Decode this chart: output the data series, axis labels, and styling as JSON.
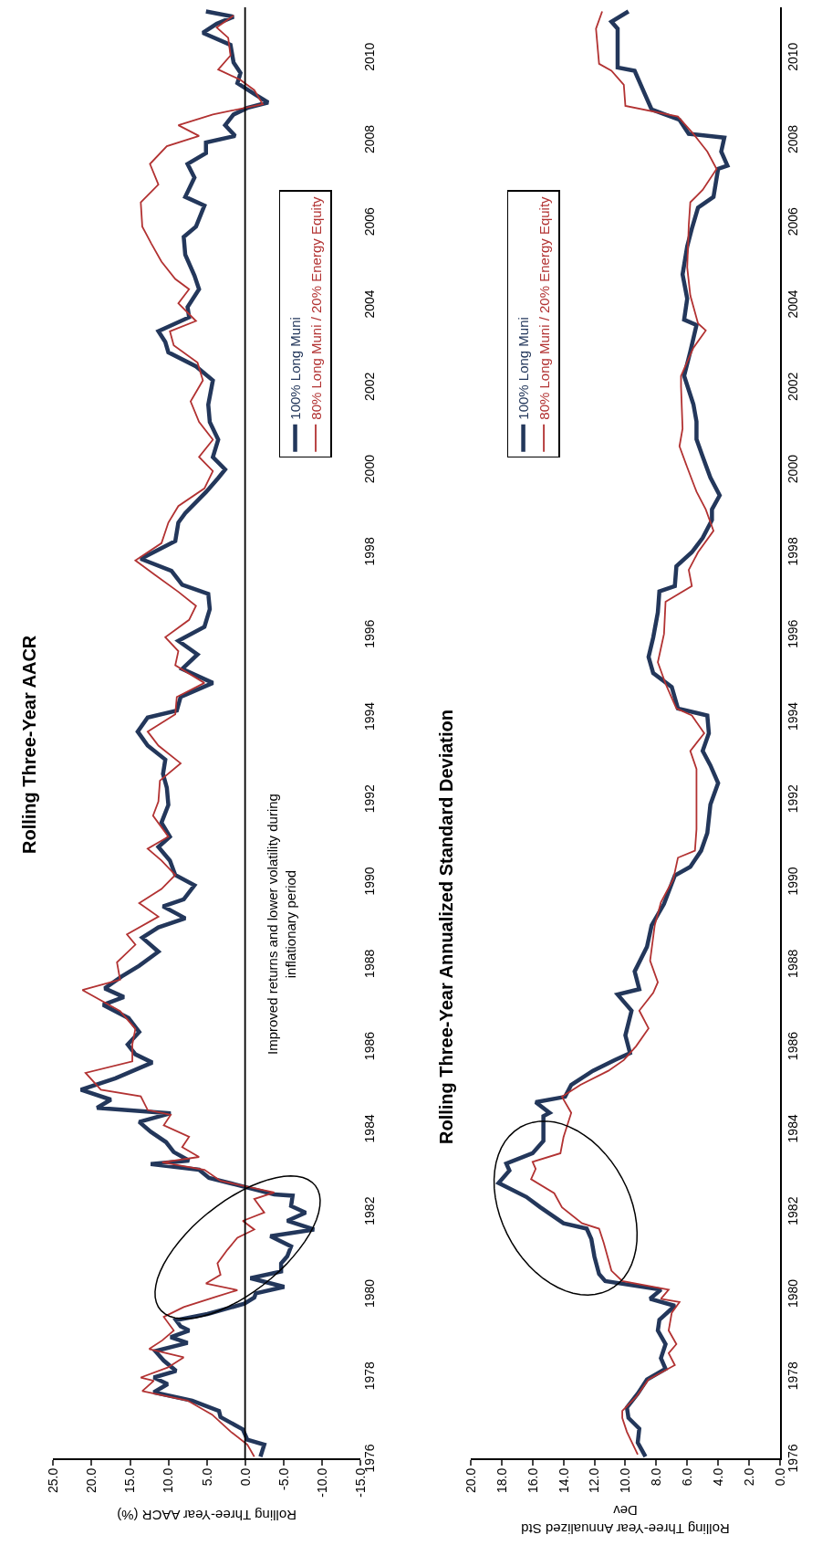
{
  "chart_data": [
    {
      "type": "line",
      "title": "Rolling Three-Year AACR",
      "xlabel": "Rolling Three-Year AACR (%)",
      "annotations": [
        "Improved returns and lower volatility during inflationary period"
      ],
      "ylim": [
        1976,
        2011.2
      ],
      "yticks": [
        1976,
        1978,
        1980,
        1982,
        1984,
        1986,
        1988,
        1990,
        1992,
        1994,
        1996,
        1998,
        2000,
        2002,
        2004,
        2006,
        2008,
        2010
      ],
      "xlim": [
        25,
        -15
      ],
      "xticks": [
        {
          "value": -15,
          "label": "-15.0"
        },
        {
          "value": -10,
          "label": "-10.0"
        },
        {
          "value": -5,
          "label": "-5.0"
        },
        {
          "value": 0,
          "label": "0.0"
        },
        {
          "value": 5,
          "label": "5.0"
        },
        {
          "value": 10,
          "label": "10.0"
        },
        {
          "value": 15,
          "label": "15.0"
        },
        {
          "value": 20,
          "label": "20.0"
        },
        {
          "value": 25,
          "label": "25.0"
        }
      ],
      "ref_lines": [
        {
          "axis": "x",
          "value": 0,
          "color": "#000000"
        }
      ],
      "legend": "top right",
      "series": [
        {
          "name": "100% Long Muni",
          "color": "#23375b",
          "values": [
            1976.04,
            1976.33,
            1976.45,
            1976.7,
            1977.0,
            1977.15,
            1977.4,
            1977.6,
            1977.8,
            1977.96,
            1978.12,
            1978.37,
            1978.6,
            1978.8,
            1978.94,
            1979.1,
            1979.2,
            1979.35,
            1979.5,
            1979.75,
            1979.9,
            1980.0,
            1980.16,
            1980.37,
            1980.53,
            1980.73,
            1980.9,
            1981.14,
            1981.39,
            1981.55,
            1981.76,
            1981.96,
            1982.12,
            1982.37,
            1982.4,
            1982.65,
            1982.8,
            1983.0,
            1983.14,
            1983.22,
            1983.43,
            1983.67,
            1983.92,
            1984.16,
            1984.37,
            1984.5,
            1984.7,
            1984.94,
            1985.22,
            1985.6,
            1985.8,
            1986.04,
            1986.34,
            1986.68,
            1987.0,
            1987.19,
            1987.4,
            1987.69,
            1987.95,
            1988.29,
            1988.63,
            1988.88,
            1989.1,
            1989.39,
            1989.56,
            1989.9,
            1990.15,
            1990.5,
            1990.83,
            1991.08,
            1991.42,
            1991.85,
            1992.27,
            1992.6,
            1992.95,
            1993.29,
            1993.63,
            1993.97,
            1994.14,
            1994.47,
            1994.81,
            1995.15,
            1995.5,
            1995.83,
            1996.17,
            1996.6,
            1996.97,
            1997.19,
            1997.53,
            1997.82,
            1998.25,
            1998.7,
            1998.93,
            1999.44,
            1999.78,
            1999.99,
            2000.29,
            2000.71,
            2001.14,
            2001.56,
            2002.15,
            2002.49,
            2002.83,
            2003.08,
            2003.34,
            2003.68,
            2003.93,
            2004.36,
            2004.69,
            2005.2,
            2005.63,
            2005.88,
            2006.39,
            2006.6,
            2007.07,
            2007.4,
            2007.66,
            2007.92,
            2008.08,
            2008.34,
            2008.6,
            2008.76,
            2008.89,
            2009.1,
            2009.36,
            2009.61,
            2009.86,
            2010.29,
            2010.58,
            2010.8,
            2010.97,
            2011.1
          ],
          "x": [
            -2.0,
            -2.5,
            -0.3,
            0.3,
            3.2,
            3.4,
            6.9,
            11.9,
            10.1,
            11.9,
            9.0,
            10.6,
            11.7,
            7.5,
            9.7,
            7.3,
            8.4,
            9.0,
            4.9,
            0.1,
            -1.2,
            -1.4,
            -5.1,
            -0.7,
            -4.7,
            -4.7,
            -5.5,
            -6.0,
            -3.3,
            -9.0,
            -5.5,
            -7.9,
            -6.0,
            -6.2,
            -3.8,
            1.4,
            4.7,
            6.0,
            12.3,
            7.3,
            9.3,
            10.3,
            12.3,
            13.8,
            9.7,
            19.3,
            17.5,
            21.4,
            16.9,
            12.1,
            14.3,
            15.3,
            13.8,
            15.2,
            18.5,
            15.8,
            18.3,
            16.1,
            13.8,
            11.3,
            13.4,
            11.3,
            7.8,
            10.7,
            8.0,
            6.6,
            9.1,
            9.8,
            11.3,
            9.8,
            10.9,
            10.0,
            10.2,
            10.7,
            10.4,
            12.7,
            14.0,
            12.7,
            8.9,
            8.4,
            4.2,
            8.2,
            6.2,
            8.7,
            5.3,
            4.6,
            4.8,
            8.2,
            9.6,
            13.6,
            9.1,
            8.7,
            7.8,
            5.1,
            3.5,
            2.6,
            4.2,
            3.5,
            4.6,
            4.8,
            4.2,
            6.4,
            10.0,
            10.4,
            11.3,
            7.3,
            7.5,
            6.0,
            6.6,
            7.8,
            8.0,
            6.4,
            5.3,
            7.8,
            6.6,
            7.5,
            5.1,
            5.1,
            1.3,
            2.6,
            1.5,
            -0.3,
            -3.0,
            -1.2,
            1.0,
            0.6,
            1.5,
            1.9,
            5.5,
            3.7,
            1.5,
            5.1
          ]
        },
        {
          "name": "80% Long Muni / 20% Energy Equity",
          "color": "#b23232",
          "values": [
            1976.04,
            1976.33,
            1976.65,
            1977.06,
            1977.4,
            1977.63,
            1977.88,
            1977.96,
            1978.2,
            1978.45,
            1978.65,
            1978.86,
            1979.1,
            1979.43,
            1979.67,
            1979.92,
            1980.08,
            1980.24,
            1980.45,
            1980.73,
            1981.06,
            1981.35,
            1981.55,
            1981.76,
            1981.96,
            1982.29,
            1982.45,
            1982.73,
            1983.0,
            1983.18,
            1983.31,
            1983.55,
            1983.8,
            1984.08,
            1984.33,
            1984.45,
            1984.78,
            1984.94,
            1985.35,
            1985.63,
            1986.04,
            1986.42,
            1986.85,
            1987.36,
            1987.61,
            1988.03,
            1988.46,
            1988.71,
            1989.14,
            1989.47,
            1989.81,
            1990.15,
            1990.5,
            1990.79,
            1991.08,
            1991.59,
            1991.93,
            1992.44,
            1992.86,
            1993.29,
            1993.63,
            1994.05,
            1994.47,
            1994.81,
            1995.24,
            1995.58,
            1995.92,
            1996.34,
            1996.68,
            1997.02,
            1997.44,
            1997.78,
            1998.2,
            1998.7,
            1999.1,
            1999.53,
            1999.95,
            2000.29,
            2000.71,
            2001.14,
            2001.64,
            2002.15,
            2002.58,
            2003.0,
            2003.34,
            2003.59,
            2004.02,
            2004.36,
            2004.61,
            2005.03,
            2005.46,
            2005.88,
            2006.47,
            2006.9,
            2007.4,
            2007.83,
            2008.08,
            2008.34,
            2008.6,
            2008.85,
            2009.19,
            2009.44,
            2009.69,
            2010.03,
            2010.46,
            2010.71,
            2011.0
          ],
          "x": [
            -1.2,
            -0.3,
            1.9,
            4.3,
            7.5,
            13.4,
            11.9,
            13.6,
            10.1,
            8.0,
            12.5,
            10.8,
            9.3,
            10.6,
            8.0,
            3.8,
            1.0,
            5.1,
            3.2,
            3.6,
            2.3,
            1.0,
            -1.2,
            0.3,
            -2.5,
            -1.2,
            -3.8,
            3.2,
            5.3,
            10.8,
            6.0,
            8.2,
            7.3,
            10.6,
            9.7,
            12.7,
            13.6,
            18.8,
            20.8,
            14.7,
            14.7,
            14.3,
            16.3,
            21.2,
            16.3,
            16.7,
            14.3,
            15.4,
            11.3,
            13.8,
            10.9,
            9.1,
            10.9,
            12.7,
            10.0,
            12.0,
            11.3,
            11.1,
            8.4,
            11.3,
            12.7,
            9.1,
            8.9,
            5.3,
            9.1,
            8.7,
            10.4,
            7.3,
            6.4,
            8.7,
            11.8,
            14.3,
            10.9,
            10.0,
            8.7,
            5.3,
            4.2,
            6.0,
            4.2,
            6.0,
            7.1,
            5.5,
            6.2,
            9.3,
            9.8,
            6.4,
            8.7,
            7.3,
            9.1,
            10.9,
            12.2,
            13.4,
            13.6,
            11.3,
            12.4,
            10.2,
            6.0,
            8.7,
            4.2,
            -2.3,
            -1.2,
            0.6,
            3.5,
            1.9,
            2.2,
            3.7,
            1.5
          ]
        }
      ]
    },
    {
      "type": "line",
      "title": "Rolling Three-Year Annualized Standard Deviation",
      "xlabel": "Rolling Three-Year Annualized Std Dev",
      "ylim": [
        1976,
        2011.2
      ],
      "yticks": [
        1976,
        1978,
        1980,
        1982,
        1984,
        1986,
        1988,
        1990,
        1992,
        1994,
        1996,
        1998,
        2000,
        2002,
        2004,
        2006,
        2008,
        2010
      ],
      "xlim": [
        20,
        0
      ],
      "xticks": [
        {
          "value": 0,
          "label": "0.0"
        },
        {
          "value": 2,
          "label": "2.0"
        },
        {
          "value": 4,
          "label": "4.0"
        },
        {
          "value": 6,
          "label": "6.0"
        },
        {
          "value": 8,
          "label": "8.0"
        },
        {
          "value": 10,
          "label": "10.0"
        },
        {
          "value": 12,
          "label": "12.0"
        },
        {
          "value": 14,
          "label": "14.0"
        },
        {
          "value": 16,
          "label": "16.0"
        },
        {
          "value": 18,
          "label": "18.0"
        },
        {
          "value": 20,
          "label": "20.0"
        }
      ],
      "legend": "top left",
      "series": [
        {
          "name": "100% Long Muni",
          "color": "#23375b",
          "values": [
            1976.04,
            1976.38,
            1976.72,
            1976.98,
            1977.23,
            1977.57,
            1977.91,
            1978.17,
            1978.43,
            1978.77,
            1979.1,
            1979.36,
            1979.7,
            1979.87,
            1980.09,
            1980.3,
            1980.47,
            1980.89,
            1981.32,
            1981.57,
            1981.7,
            1982.09,
            1982.34,
            1982.68,
            1982.98,
            1983.15,
            1983.4,
            1983.7,
            1984.3,
            1984.38,
            1984.64,
            1984.77,
            1985.06,
            1985.4,
            1985.66,
            1985.83,
            1986.26,
            1986.86,
            1987.25,
            1987.38,
            1987.81,
            1988.41,
            1988.93,
            1989.45,
            1990.14,
            1990.35,
            1990.74,
            1991.17,
            1991.86,
            1992.38,
            1992.81,
            1993.16,
            1993.59,
            1994.02,
            1994.19,
            1994.71,
            1995.05,
            1995.44,
            1995.91,
            1996.52,
            1997.03,
            1997.16,
            1997.64,
            1997.98,
            1998.33,
            1998.76,
            1999.02,
            1999.36,
            1999.79,
            2000.3,
            2000.72,
            2001.15,
            2001.57,
            2002.26,
            2002.85,
            2003.49,
            2003.62,
            2004.13,
            2004.72,
            2005.4,
            2005.83,
            2006.34,
            2006.6,
            2007.28,
            2007.36,
            2007.7,
            2008.04,
            2008.13,
            2008.47,
            2008.72,
            2009.06,
            2009.66,
            2009.74,
            2010.68,
            2010.85,
            2011.1
          ],
          "x": [
            8.7,
            9.2,
            9.1,
            9.8,
            9.9,
            9.2,
            8.6,
            7.4,
            7.7,
            7.4,
            7.9,
            7.8,
            6.8,
            8.4,
            7.7,
            11.3,
            11.7,
            12.0,
            12.2,
            12.5,
            14.0,
            15.5,
            16.4,
            18.2,
            17.5,
            17.7,
            16.0,
            15.3,
            15.3,
            14.9,
            15.8,
            13.9,
            13.5,
            12.1,
            10.7,
            9.7,
            10.0,
            9.6,
            10.5,
            9.1,
            9.4,
            8.6,
            8.3,
            7.5,
            6.8,
            5.8,
            5.1,
            4.7,
            4.5,
            4.0,
            4.5,
            5.0,
            4.6,
            4.7,
            6.6,
            7.0,
            8.2,
            8.5,
            8.2,
            7.9,
            7.8,
            6.8,
            6.7,
            5.7,
            5.0,
            4.4,
            4.4,
            3.9,
            4.5,
            5.0,
            5.4,
            5.4,
            5.6,
            6.2,
            5.8,
            5.4,
            6.2,
            6.0,
            6.3,
            6.0,
            5.7,
            5.3,
            4.3,
            4.0,
            3.4,
            3.8,
            3.6,
            5.9,
            6.5,
            8.3,
            8.7,
            9.4,
            10.5,
            10.5,
            10.9,
            9.8
          ]
        },
        {
          "name": "80% Long Muni / 20% Energy Equity",
          "color": "#b23232",
          "values": [
            1976.09,
            1976.64,
            1976.98,
            1977.15,
            1977.49,
            1977.91,
            1978.26,
            1978.55,
            1978.77,
            1979.1,
            1979.53,
            1979.79,
            1979.87,
            1980.09,
            1980.3,
            1980.55,
            1981.23,
            1981.57,
            1981.7,
            1982.09,
            1982.43,
            1982.77,
            1983.02,
            1983.19,
            1983.4,
            1983.79,
            1984.38,
            1984.77,
            1985.06,
            1985.4,
            1985.66,
            1986.0,
            1986.43,
            1986.86,
            1987.29,
            1987.55,
            1988.07,
            1988.93,
            1989.49,
            1990.05,
            1990.57,
            1990.74,
            1991.26,
            1992.03,
            1992.72,
            1993.16,
            1993.59,
            1994.02,
            1994.19,
            1994.79,
            1995.31,
            1996.0,
            1996.78,
            1997.16,
            1997.55,
            1997.98,
            1998.5,
            1999.02,
            1999.45,
            2000.04,
            2000.55,
            2000.98,
            2002.0,
            2002.26,
            2002.94,
            2003.36,
            2003.53,
            2004.21,
            2004.89,
            2005.91,
            2006.47,
            2006.77,
            2007.28,
            2007.7,
            2008.13,
            2008.55,
            2008.81,
            2009.32,
            2009.66,
            2009.83,
            2010.68,
            2011.1
          ],
          "x": [
            9.2,
            9.9,
            10.2,
            10.2,
            9.3,
            8.5,
            6.8,
            7.2,
            6.7,
            7.2,
            7.0,
            6.5,
            7.7,
            7.2,
            10.2,
            10.9,
            11.4,
            11.7,
            12.8,
            14.1,
            14.6,
            16.1,
            15.8,
            16.0,
            14.2,
            14.0,
            13.5,
            14.1,
            12.9,
            11.1,
            10.1,
            9.3,
            8.5,
            9.1,
            8.2,
            7.9,
            8.4,
            8.1,
            7.7,
            6.9,
            6.6,
            5.5,
            5.4,
            5.4,
            5.4,
            5.8,
            4.9,
            5.7,
            6.7,
            7.4,
            7.9,
            7.5,
            7.4,
            5.7,
            5.9,
            5.3,
            4.3,
            4.8,
            5.4,
            6.0,
            6.5,
            6.3,
            6.4,
            6.4,
            5.6,
            4.8,
            5.3,
            5.8,
            6.0,
            5.9,
            5.8,
            5.0,
            4.1,
            4.7,
            5.6,
            6.6,
            10.0,
            10.1,
            10.9,
            11.7,
            11.9,
            11.5
          ]
        }
      ]
    }
  ]
}
